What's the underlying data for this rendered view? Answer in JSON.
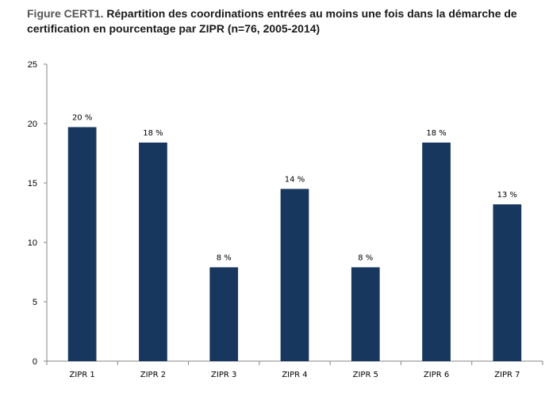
{
  "title": {
    "prefix": "Figure CERT1.",
    "text": "Répartition des coordinations entrées au moins une fois dans la démarche de certification en pourcentage par ZIPR (n=76, 2005-2014)"
  },
  "colors": {
    "bar": "#17375e",
    "axis": "#868686"
  },
  "chart_data": {
    "type": "bar",
    "categories": [
      "ZIPR 1",
      "ZIPR 2",
      "ZIPR 3",
      "ZIPR 4",
      "ZIPR 5",
      "ZIPR 6",
      "ZIPR 7"
    ],
    "values": [
      19.7,
      18.4,
      7.9,
      14.5,
      7.9,
      18.4,
      13.2
    ],
    "data_labels": [
      "20 %",
      "18 %",
      "8 %",
      "14 %",
      "8 %",
      "18 %",
      "13 %"
    ],
    "yticks": [
      "0",
      "5",
      "10",
      "15",
      "20",
      "25"
    ],
    "ylim": [
      0,
      25
    ],
    "grid": false,
    "legend": "none"
  }
}
